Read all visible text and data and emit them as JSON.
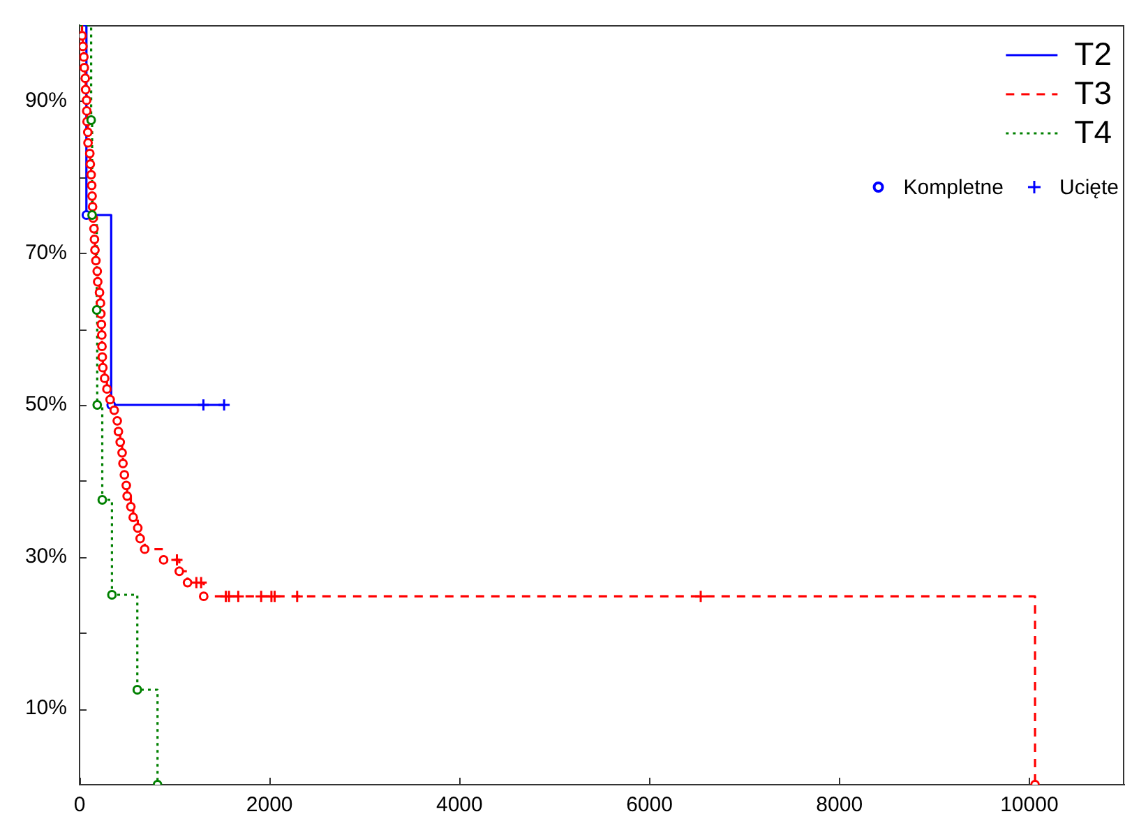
{
  "chart_data": {
    "type": "step",
    "legend": "top right",
    "xlim": [
      0,
      11000
    ],
    "xticks": [
      0,
      2000,
      4000,
      6000,
      8000,
      10000
    ],
    "ylim": [
      0,
      100
    ],
    "yticks": [
      {
        "value": 10,
        "label": "10%"
      },
      {
        "value": 20,
        "label": null
      },
      {
        "value": 30,
        "label": "30%"
      },
      {
        "value": 40,
        "label": null
      },
      {
        "value": 50,
        "label": "50%"
      },
      {
        "value": 60,
        "label": null
      },
      {
        "value": 70,
        "label": "70%"
      },
      {
        "value": 80,
        "label": null
      },
      {
        "value": 90,
        "label": "90%"
      }
    ],
    "series": [
      {
        "name": "T2",
        "color": "#0000ff",
        "line_style": "solid",
        "x": [
          0,
          72,
          333,
          1304,
          1522
        ],
        "values": [
          100,
          75,
          50,
          50,
          50
        ]
      },
      {
        "name": "T3",
        "color": "#ff0000",
        "line_style": "dashed",
        "x": [
          0,
          26,
          35,
          45,
          50,
          60,
          64,
          74,
          76,
          79,
          87,
          89,
          108,
          113,
          122,
          128,
          132,
          137,
          143,
          152,
          157,
          162,
          172,
          186,
          191,
          210,
          220,
          224,
          230,
          234,
          236,
          239,
          245,
          264,
          288,
          322,
          365,
          397,
          409,
          428,
          448,
          457,
          472,
          492,
          501,
          540,
          565,
          613,
          638,
          686,
          885,
          1025,
          1050,
          1137,
          1230,
          1280,
          1307,
          1540,
          1573,
          1671,
          1912,
          2020,
          2054,
          2291,
          6540,
          10060
        ],
        "values": [
          100,
          98.6,
          97.2,
          95.8,
          94.4,
          93.0,
          91.5,
          90.1,
          88.7,
          87.3,
          85.9,
          84.5,
          83.1,
          81.7,
          80.3,
          78.9,
          77.5,
          76.1,
          74.6,
          73.2,
          71.8,
          70.4,
          69.0,
          67.6,
          66.2,
          64.8,
          63.4,
          62.0,
          60.6,
          59.2,
          57.7,
          56.3,
          54.9,
          53.5,
          52.1,
          50.7,
          49.3,
          47.9,
          46.5,
          45.1,
          43.7,
          42.3,
          40.8,
          39.4,
          38.0,
          36.6,
          35.2,
          33.8,
          32.4,
          31.0,
          29.6,
          29.6,
          28.1,
          26.6,
          26.6,
          26.6,
          24.8,
          24.8,
          24.8,
          24.8,
          24.8,
          24.8,
          24.8,
          24.8,
          24.8,
          0
        ]
      },
      {
        "name": "T4",
        "color": "#008000",
        "line_style": "dotted",
        "x": [
          0,
          122,
          132,
          181,
          186,
          239,
          341,
          608,
          821
        ],
        "values": [
          100,
          87.5,
          75,
          62.5,
          50,
          37.5,
          25,
          12.5,
          0
        ]
      },
      {
        "name": "Kompletne",
        "type": "scatter",
        "marker": "circle",
        "color": "#0000ff",
        "x": [
          72,
          333
        ],
        "values": [
          75,
          50
        ]
      },
      {
        "name": "Ucięte",
        "type": "scatter",
        "marker": "cross",
        "color": "#0000ff",
        "x": [
          1304,
          1522
        ],
        "values": [
          50,
          50
        ]
      },
      {
        "type": "scatter",
        "marker": "circle",
        "color": "#ff0000",
        "x": [
          26,
          35,
          45,
          50,
          60,
          64,
          74,
          76,
          79,
          87,
          89,
          108,
          113,
          122,
          128,
          132,
          137,
          143,
          152,
          157,
          162,
          172,
          186,
          191,
          210,
          220,
          224,
          230,
          234,
          236,
          239,
          245,
          264,
          288,
          322,
          365,
          397,
          409,
          428,
          448,
          457,
          472,
          492,
          501,
          540,
          565,
          613,
          638,
          686,
          885,
          1050,
          1137,
          1307,
          10060
        ],
        "values": [
          98.6,
          97.2,
          95.8,
          94.4,
          93.0,
          91.5,
          90.1,
          88.7,
          87.3,
          85.9,
          84.5,
          83.1,
          81.7,
          80.3,
          78.9,
          77.5,
          76.1,
          74.6,
          73.2,
          71.8,
          70.4,
          69.0,
          67.6,
          66.2,
          64.8,
          63.4,
          62.0,
          60.6,
          59.2,
          57.7,
          56.3,
          54.9,
          53.5,
          52.1,
          50.7,
          49.3,
          47.9,
          46.5,
          45.1,
          43.7,
          42.3,
          40.8,
          39.4,
          38.0,
          36.6,
          35.2,
          33.8,
          32.4,
          31.0,
          29.6,
          28.1,
          26.6,
          24.8,
          0
        ]
      },
      {
        "type": "scatter",
        "marker": "cross",
        "color": "#ff0000",
        "x": [
          1025,
          1230,
          1280,
          1540,
          1573,
          1671,
          1912,
          2020,
          2054,
          2291,
          6540
        ],
        "values": [
          29.6,
          26.6,
          26.6,
          24.8,
          24.8,
          24.8,
          24.8,
          24.8,
          24.8,
          24.8,
          24.8
        ]
      },
      {
        "type": "scatter",
        "marker": "circle",
        "color": "#008000",
        "x": [
          122,
          132,
          181,
          186,
          239,
          341,
          608,
          821
        ],
        "values": [
          87.5,
          75,
          62.5,
          50,
          37.5,
          25,
          12.5,
          0
        ]
      }
    ]
  }
}
